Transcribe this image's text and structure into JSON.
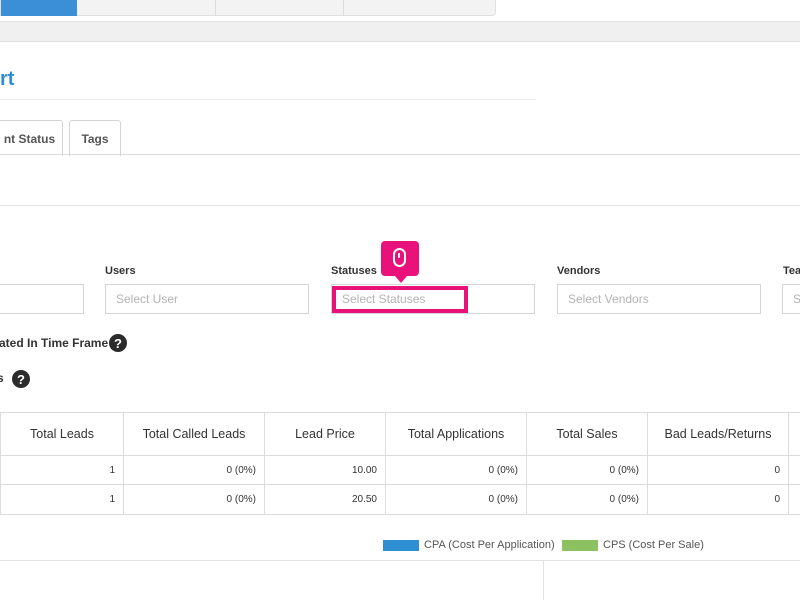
{
  "page": {
    "title": "rt"
  },
  "tabs": [
    {
      "label": "nt Status"
    },
    {
      "label": "Tags"
    }
  ],
  "filters": {
    "users": {
      "label": "Users",
      "placeholder": "Select User"
    },
    "statuses": {
      "label": "Statuses",
      "placeholder": "Select Statuses"
    },
    "vendors": {
      "label": "Vendors",
      "placeholder": "Select Vendors"
    },
    "teams": {
      "label": "Tea",
      "placeholder": "S"
    }
  },
  "options": {
    "created_in_time_frame": "ated In Time Frame",
    "second_option": "s"
  },
  "table": {
    "headers": [
      "Total Leads",
      "Total Called Leads",
      "Lead Price",
      "Total Applications",
      "Total Sales",
      "Bad Leads/Returns"
    ],
    "rows": [
      [
        "1",
        "0 (0%)",
        "10.00",
        "0 (0%)",
        "0 (0%)",
        "0"
      ],
      [
        "1",
        "0 (0%)",
        "20.50",
        "0 (0%)",
        "0 (0%)",
        "0"
      ]
    ]
  },
  "legend": [
    {
      "label": "CPA (Cost Per Application)",
      "color": "#2f8fd3"
    },
    {
      "label": "CPS (Cost Per Sale)",
      "color": "#8cc162"
    }
  ],
  "colors": {
    "accent": "#2f8fd3",
    "highlight": "#e8127a"
  },
  "icons": {
    "help": "question-circle-icon",
    "cursor": "mouse-icon"
  }
}
